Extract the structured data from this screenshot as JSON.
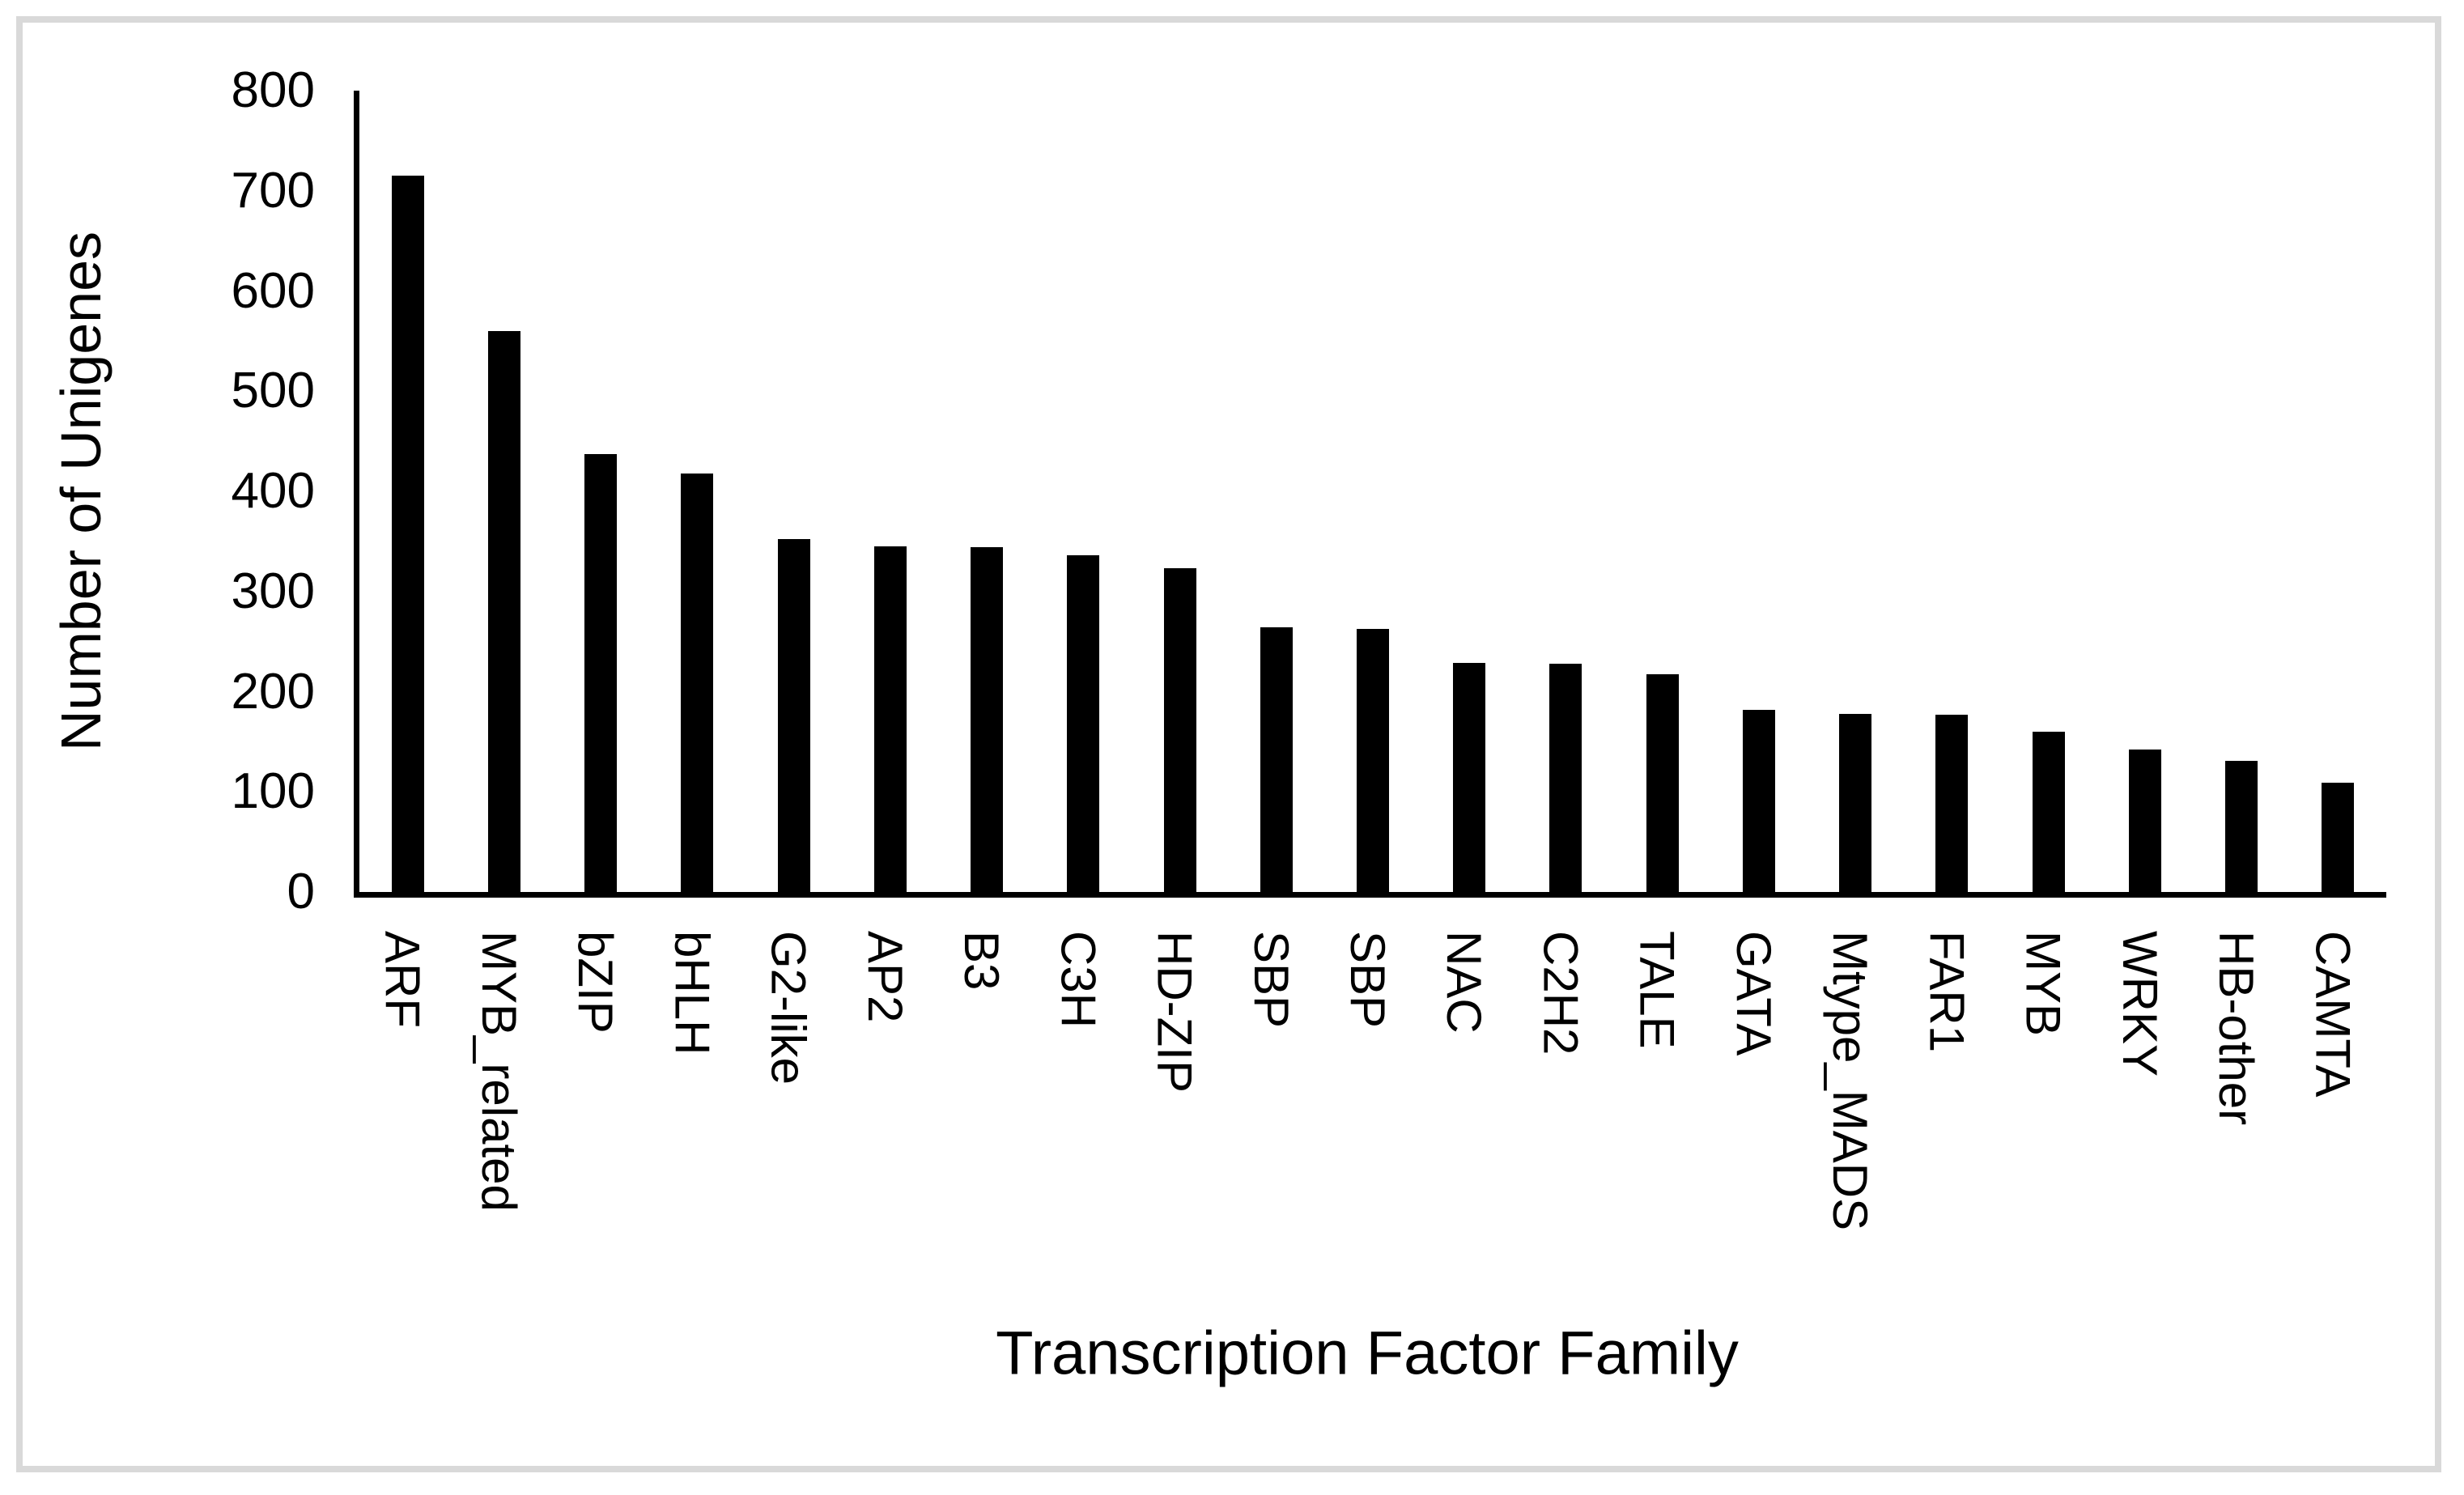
{
  "figure": {
    "background_color": "#ffffff",
    "frame_color": "#d9d9d9",
    "bar_color": "#000000",
    "axis_color": "#000000",
    "text_color": "#000000"
  },
  "chart_data": {
    "type": "bar",
    "title": "",
    "xlabel": "Transcription Factor Family",
    "ylabel": "Number of Unigenes",
    "categories": [
      "ARF",
      "MYB_related",
      "bZIP",
      "bHLH",
      "G2-like",
      "AP2",
      "B3",
      "C3H",
      "HD-ZIP",
      "SBP",
      "SBP",
      "NAC",
      "C2H2",
      "TALE",
      "GATA",
      "Mtype_MADS",
      "FAR1",
      "MYB",
      "WRKY",
      "HB-other",
      "CAMTA"
    ],
    "values": [
      715,
      560,
      437,
      418,
      352,
      345,
      344,
      336,
      323,
      264,
      263,
      229,
      228,
      217,
      182,
      178,
      177,
      160,
      142,
      131,
      109
    ],
    "ylim": [
      0,
      800
    ],
    "yticks": [
      0,
      100,
      200,
      300,
      400,
      500,
      600,
      700,
      800
    ],
    "grid": false,
    "legend": null,
    "bar_orientation": "vertical",
    "category_label_rotation_deg": 90
  }
}
